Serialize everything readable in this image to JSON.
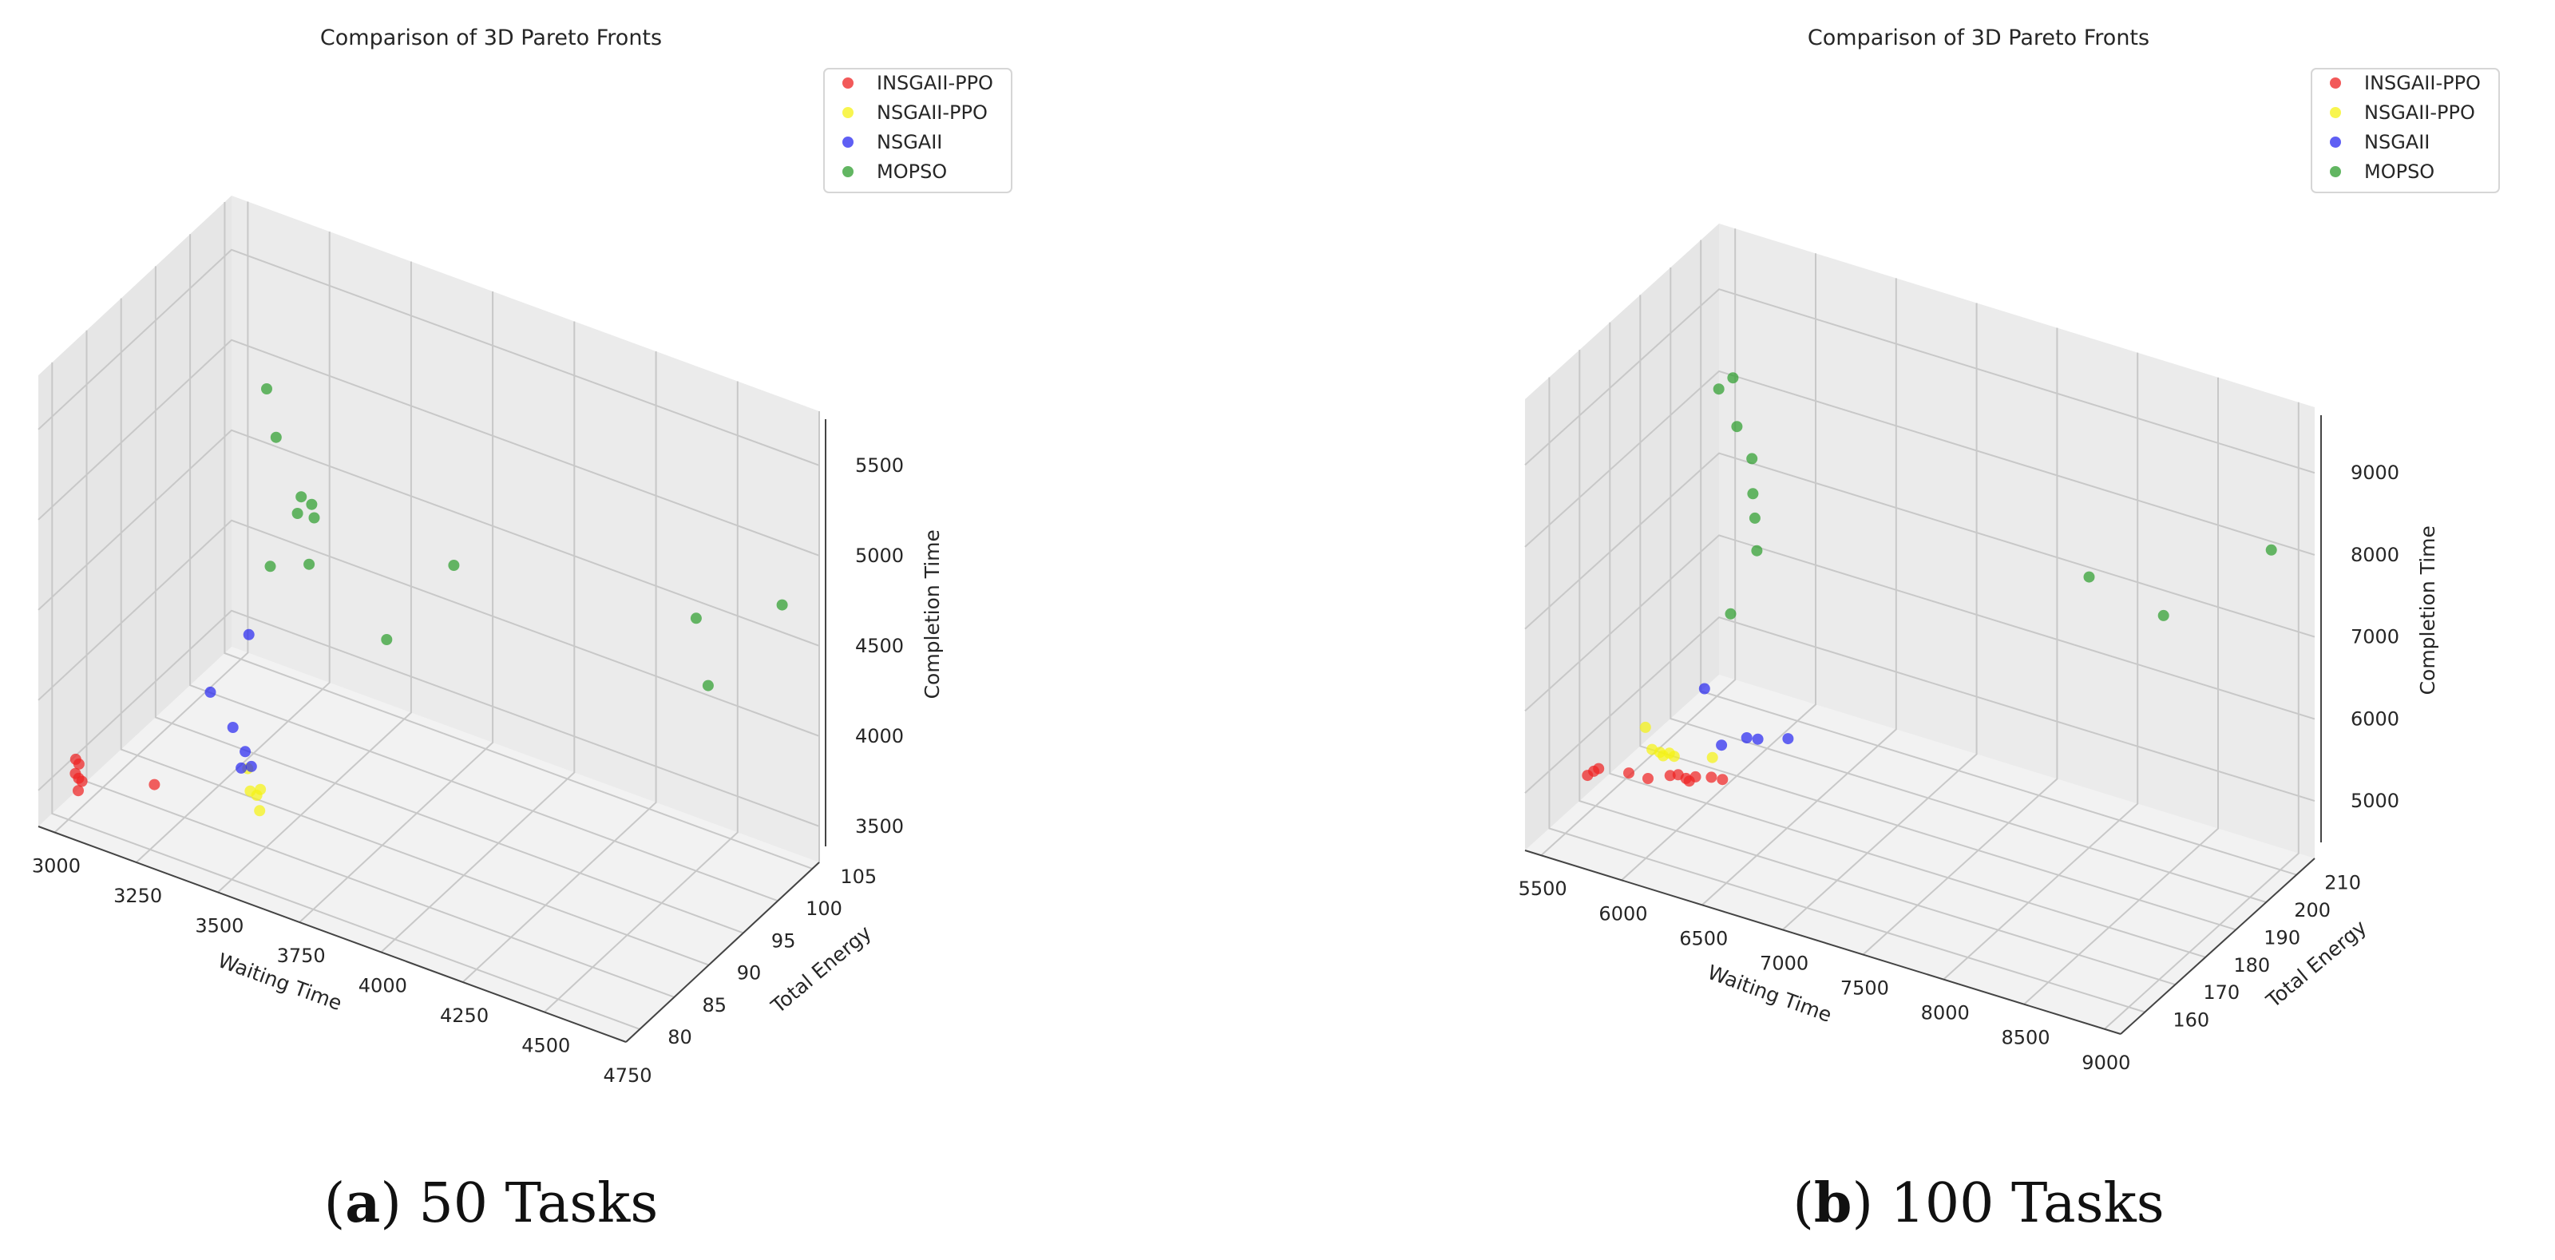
{
  "chart_data": [
    {
      "type": "scatter",
      "title": "Comparison of 3D Pareto Fronts",
      "caption": {
        "label": "a",
        "text": " 50 Tasks"
      },
      "xlabel": "Waiting Time",
      "ylabel": "Total Energy",
      "zlabel": "Completion Time",
      "xlim": [
        2950,
        4750
      ],
      "ylim": [
        78,
        106
      ],
      "zlim": [
        3300,
        5800
      ],
      "xticks": [
        3000,
        3250,
        3500,
        3750,
        4000,
        4250,
        4500,
        4750
      ],
      "yticks": [
        80,
        85,
        90,
        95,
        100,
        105
      ],
      "zticks": [
        3500,
        4000,
        4500,
        5000,
        5500
      ],
      "legend_position": "top-right",
      "series": [
        {
          "name": "INSGAII-PPO",
          "color": "#ee2222",
          "points": [
            [
              2980,
              82,
              3550
            ],
            [
              2990,
              82,
              3530
            ],
            [
              3000,
              81,
              3520
            ],
            [
              3010,
              81,
              3500
            ],
            [
              3020,
              81,
              3490
            ],
            [
              3030,
              80,
              3480
            ],
            [
              3200,
              83,
              3520
            ]
          ]
        },
        {
          "name": "NSGAII-PPO",
          "color": "#f5f214",
          "points": [
            [
              3380,
              88,
              3550
            ],
            [
              3430,
              86,
              3530
            ],
            [
              3440,
              87,
              3510
            ],
            [
              3450,
              86,
              3520
            ],
            [
              3480,
              85,
              3490
            ]
          ]
        },
        {
          "name": "NSGAII",
          "color": "#2a2af0",
          "points": [
            [
              3160,
              93,
              3650
            ],
            [
              3250,
              92,
              3550
            ],
            [
              3330,
              90,
              3540
            ],
            [
              3360,
              88,
              3540
            ],
            [
              3370,
              89,
              3520
            ],
            [
              3130,
              100,
              3700
            ]
          ]
        },
        {
          "name": "MOPSO",
          "color": "#2e9e2e",
          "points": [
            [
              3100,
              104,
              4900
            ],
            [
              3150,
              103,
              4700
            ],
            [
              3290,
              100,
              4570
            ],
            [
              3300,
              99,
              4520
            ],
            [
              3330,
              100,
              4480
            ],
            [
              3280,
              102,
              4450
            ],
            [
              3420,
              95,
              4460
            ],
            [
              3280,
              96,
              4320
            ],
            [
              3800,
              98,
              4600
            ],
            [
              3700,
              93,
              4300
            ],
            [
              4500,
              100,
              4700
            ],
            [
              4600,
              97,
              4500
            ],
            [
              4700,
              103,
              4800
            ]
          ]
        }
      ]
    },
    {
      "type": "scatter",
      "title": "Comparison of 3D Pareto Fronts",
      "caption": {
        "label": "b",
        "text": " 100 Tasks"
      },
      "xlabel": "Waiting Time",
      "ylabel": "Total Energy",
      "zlabel": "Completion Time",
      "xlim": [
        5400,
        9100
      ],
      "ylim": [
        152,
        216
      ],
      "zlim": [
        4300,
        9800
      ],
      "xticks": [
        5500,
        6000,
        6500,
        7000,
        7500,
        8000,
        8500,
        9000
      ],
      "yticks": [
        160,
        170,
        180,
        190,
        200,
        210
      ],
      "zticks": [
        5000,
        6000,
        7000,
        8000,
        9000
      ],
      "legend_position": "top-right",
      "series": [
        {
          "name": "INSGAII-PPO",
          "color": "#ee2222",
          "points": [
            [
              5600,
              162,
              5000
            ],
            [
              5620,
              163,
              5030
            ],
            [
              5650,
              163,
              5080
            ],
            [
              5800,
              165,
              5050
            ],
            [
              5900,
              166,
              5010
            ],
            [
              6000,
              168,
              5040
            ],
            [
              6050,
              168,
              5080
            ],
            [
              6080,
              169,
              5020
            ],
            [
              6100,
              169,
              5000
            ],
            [
              6200,
              171,
              5040
            ],
            [
              6250,
              172,
              5010
            ],
            [
              6120,
              170,
              5030
            ]
          ]
        },
        {
          "name": "NSGAII-PPO",
          "color": "#f5f214",
          "points": [
            [
              5850,
              170,
              5200
            ],
            [
              5880,
              171,
              5150
            ],
            [
              5900,
              171,
              5120
            ],
            [
              5920,
              172,
              5130
            ],
            [
              5950,
              172,
              5110
            ],
            [
              6150,
              174,
              5150
            ],
            [
              5790,
              171,
              5400
            ]
          ]
        },
        {
          "name": "NSGAII",
          "color": "#2a2af0",
          "points": [
            [
              6150,
              177,
              5200
            ],
            [
              6250,
              180,
              5250
            ],
            [
              6300,
              181,
              5230
            ],
            [
              6450,
              183,
              5260
            ],
            [
              5950,
              182,
              5600
            ]
          ]
        },
        {
          "name": "MOPSO",
          "color": "#2e9e2e",
          "points": [
            [
              5700,
              200,
              8500
            ],
            [
              5750,
              202,
              8600
            ],
            [
              5850,
              198,
              8200
            ],
            [
              6000,
              195,
              8000
            ],
            [
              6100,
              190,
              7800
            ],
            [
              6150,
              188,
              7600
            ],
            [
              6200,
              186,
              7300
            ],
            [
              6150,
              180,
              6700
            ],
            [
              8000,
              200,
              7600
            ],
            [
              8500,
              198,
              7500
            ],
            [
              9000,
              207,
              8300
            ]
          ]
        }
      ]
    }
  ]
}
